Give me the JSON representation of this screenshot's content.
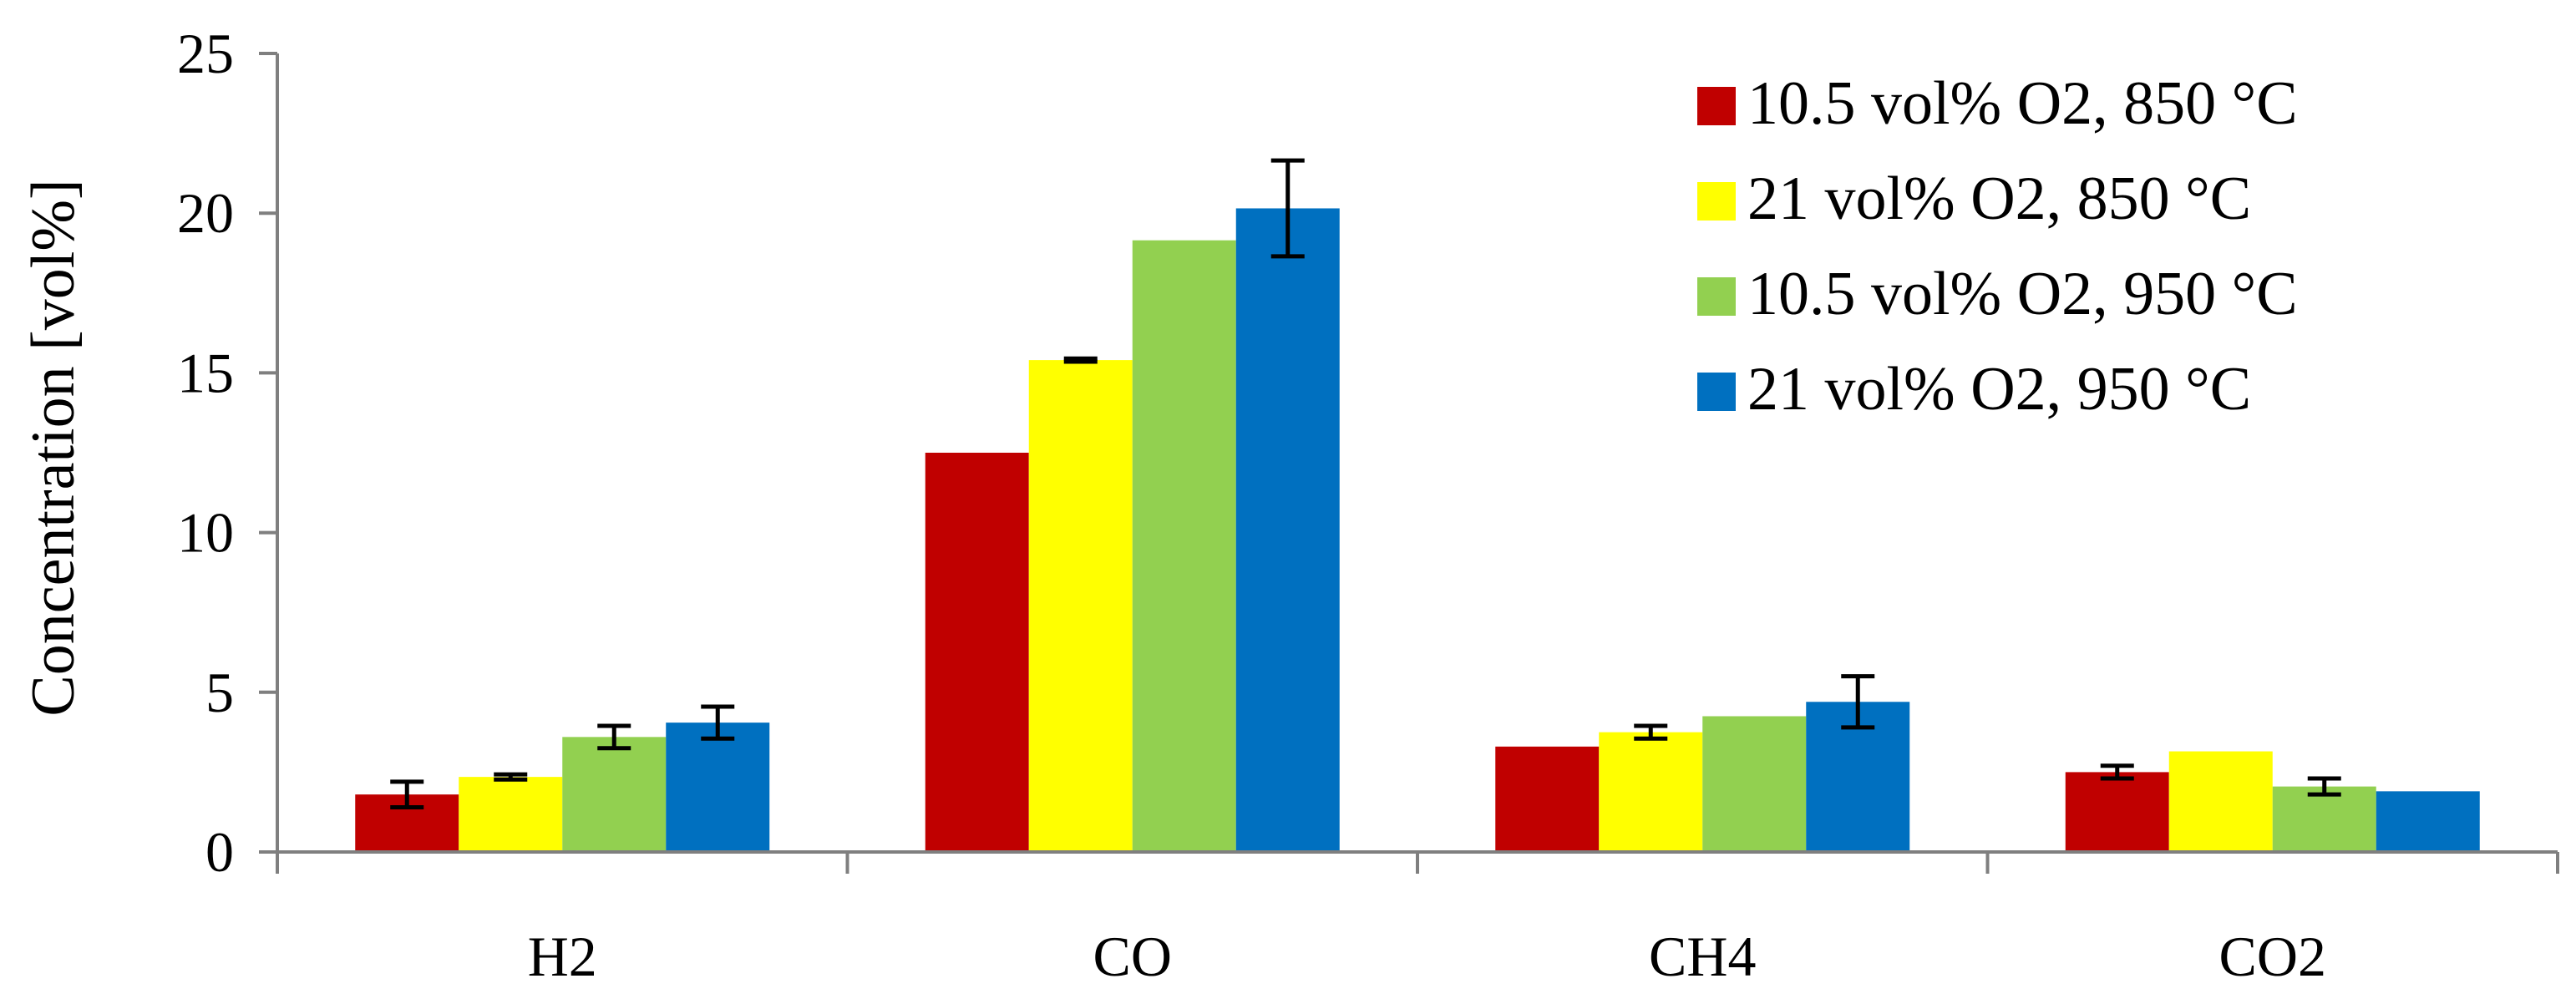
{
  "chart_data": {
    "type": "bar",
    "title": "",
    "xlabel": "",
    "ylabel": "Concentration [vol%]",
    "ylim": [
      0,
      25
    ],
    "yticks": [
      0,
      5,
      10,
      15,
      20,
      25
    ],
    "grid": false,
    "legend_position": "top-right",
    "categories": [
      "H2",
      "CO",
      "CH4",
      "CO2"
    ],
    "series": [
      {
        "name": "10.5 vol% O2, 850 °C",
        "color": "#C00000",
        "values": [
          1.8,
          12.5,
          3.3,
          2.5
        ],
        "errors": [
          0.4,
          null,
          null,
          0.2
        ]
      },
      {
        "name": "21 vol% O2, 850 °C",
        "color": "#FFFF00",
        "values": [
          2.35,
          15.4,
          3.75,
          3.15
        ],
        "errors": [
          0.08,
          0.05,
          0.2,
          null
        ]
      },
      {
        "name": "10.5 vol% O2, 950 °C",
        "color": "#92D050",
        "values": [
          3.6,
          19.15,
          4.25,
          2.05
        ],
        "errors": [
          0.35,
          null,
          null,
          0.25
        ]
      },
      {
        "name": "21 vol% O2, 950 °C",
        "color": "#0070C0",
        "values": [
          4.05,
          20.15,
          4.7,
          1.9
        ],
        "errors": [
          0.5,
          1.5,
          0.8,
          null
        ]
      }
    ]
  }
}
